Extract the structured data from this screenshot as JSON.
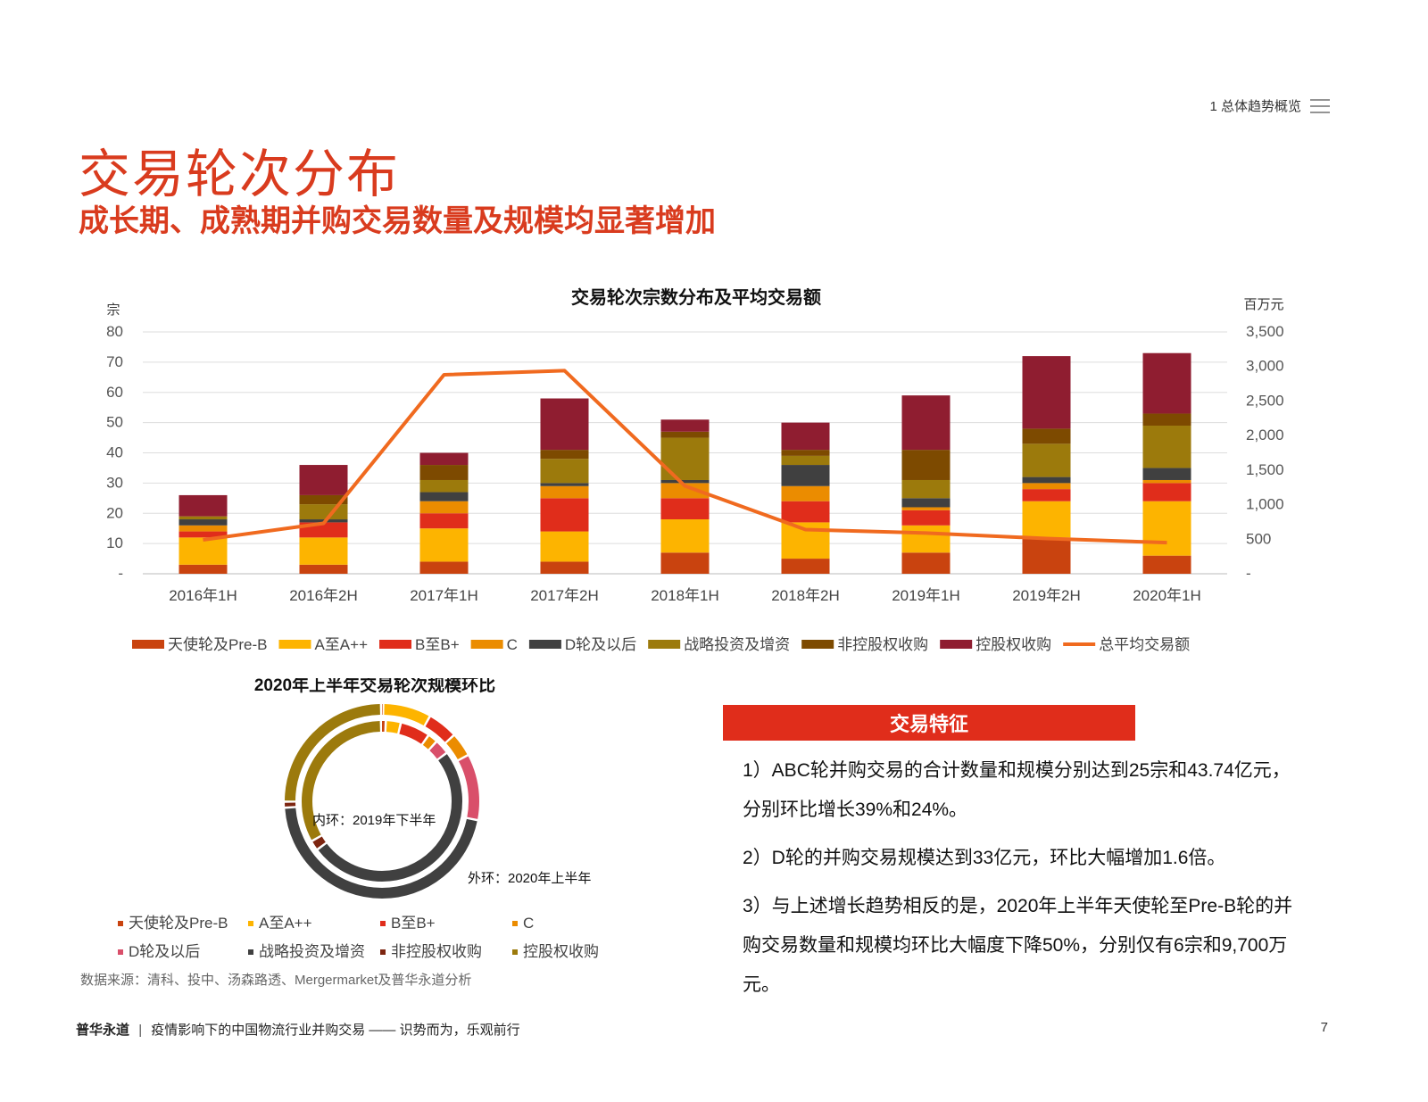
{
  "header": {
    "section_label": "1 总体趋势概览",
    "menu_icon": "menu-icon"
  },
  "title": "交易轮次分布",
  "subtitle": "成长期、成熟期并购交易数量及规模均显著增加",
  "chart_data": [
    {
      "type": "bar",
      "stacked": true,
      "title": "交易轮次宗数分布及平均交易额",
      "ylabel_left": "宗",
      "ylabel_right": "百万元",
      "categories": [
        "2016年1H",
        "2016年2H",
        "2017年1H",
        "2017年2H",
        "2018年1H",
        "2018年2H",
        "2019年1H",
        "2019年2H",
        "2020年1H"
      ],
      "ylim_left": [
        0,
        80
      ],
      "ylim_right": [
        0,
        3500
      ],
      "yticks_left": [
        "-",
        "10",
        "20",
        "30",
        "40",
        "50",
        "60",
        "70",
        "80"
      ],
      "yticks_right": [
        "-",
        "500",
        "1,000",
        "1,500",
        "2,000",
        "2,500",
        "3,000",
        "3,500"
      ],
      "series": [
        {
          "name": "天使轮及Pre-B",
          "color": "#c9430f",
          "values": [
            3,
            3,
            4,
            4,
            7,
            5,
            7,
            12,
            6
          ]
        },
        {
          "name": "A至A++",
          "color": "#fdb400",
          "values": [
            9,
            9,
            11,
            10,
            11,
            12,
            9,
            12,
            18
          ]
        },
        {
          "name": "B至B+",
          "color": "#e02d1b",
          "values": [
            2,
            5,
            5,
            11,
            7,
            7,
            5,
            4,
            6
          ]
        },
        {
          "name": "C",
          "color": "#eb8c00",
          "values": [
            2,
            0,
            4,
            4,
            5,
            5,
            1,
            2,
            1
          ]
        },
        {
          "name": "D轮及以后",
          "color": "#404040",
          "values": [
            2,
            1,
            3,
            1,
            1,
            7,
            3,
            2,
            4
          ]
        },
        {
          "name": "战略投资及增资",
          "color": "#9c7a0c",
          "values": [
            1,
            5,
            4,
            8,
            14,
            3,
            6,
            11,
            14
          ]
        },
        {
          "name": "非控股权收购",
          "color": "#7d4a00",
          "values": [
            0,
            3,
            5,
            3,
            2,
            2,
            10,
            5,
            4
          ]
        },
        {
          "name": "控股权收购",
          "color": "#8f1d30",
          "values": [
            7,
            10,
            4,
            17,
            4,
            9,
            18,
            24,
            20
          ]
        }
      ],
      "line": {
        "name": "总平均交易额",
        "color": "#f06a1f",
        "axis": "right",
        "values": [
          490,
          730,
          2880,
          2940,
          1270,
          640,
          590,
          510,
          450
        ]
      }
    },
    {
      "type": "pie",
      "variant": "double-donut",
      "title": "2020年上半年交易轮次规模环比",
      "inner_label": "内环：2019年下半年",
      "outer_label": "外环：2020年上半年",
      "categories": [
        "天使轮及Pre-B",
        "A至A++",
        "B至B+",
        "C",
        "D轮及以后",
        "战略投资及增资",
        "非控股权收购",
        "控股权收购"
      ],
      "colors": [
        "#c9430f",
        "#fdb400",
        "#e02d1b",
        "#eb8c00",
        "#d94f6a",
        "#404040",
        "#7d2510",
        "#9c7a0c"
      ],
      "inner_values": [
        1,
        3,
        6,
        2,
        3,
        50,
        2,
        33
      ],
      "outer_values": [
        0.4,
        8,
        5,
        4,
        11,
        46,
        1,
        25
      ]
    }
  ],
  "legend": {
    "main": [
      "天使轮及Pre-B",
      "A至A++",
      "B至B+",
      "C",
      "D轮及以后",
      "战略投资及增资",
      "非控股权收购",
      "控股权收购",
      "总平均交易额"
    ]
  },
  "source": "数据来源：清科、投中、汤森路透、Mergermarket及普华永道分析",
  "features": {
    "heading": "交易特征",
    "items": [
      "1）ABC轮并购交易的合计数量和规模分别达到25宗和43.74亿元，分别环比增长39%和24%。",
      "2）D轮的并购交易规模达到33亿元，环比大幅增加1.6倍。",
      "3）与上述增长趋势相反的是，2020年上半年天使轮至Pre-B轮的并购交易数量和规模均环比大幅度下降50%，分别仅有6宗和9,700万元。"
    ]
  },
  "footer": {
    "brand": "普华永道",
    "separator": "|",
    "report_title": "疫情影响下的中国物流行业并购交易 —— 识势而为，乐观前行",
    "page_number": "7"
  }
}
